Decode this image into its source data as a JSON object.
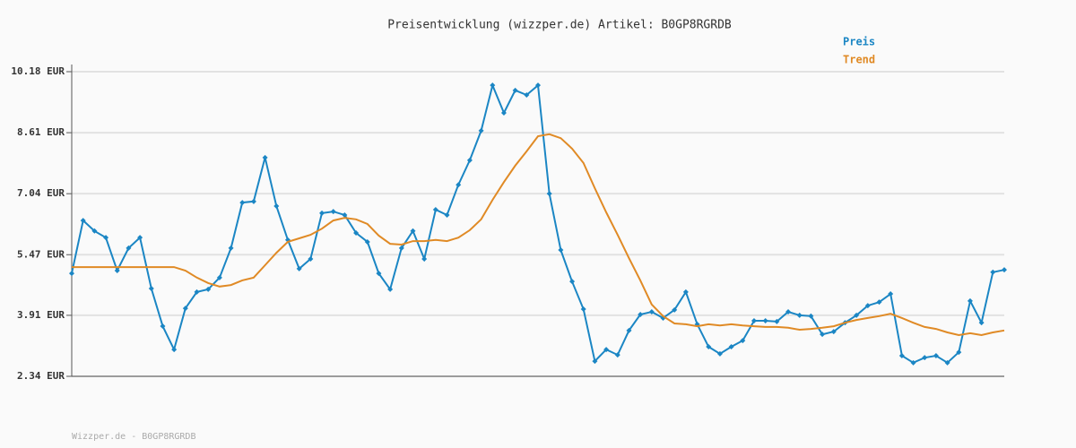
{
  "chart_data": {
    "type": "line",
    "title": "Preisentwicklung (wizzper.de) Artikel: B0GP8RGRDB",
    "footer": "Wizzper.de - B0GP8RGRDB",
    "ylim": [
      2.34,
      10.18
    ],
    "yticks": [
      {
        "value": 2.34,
        "label": "2.34 EUR"
      },
      {
        "value": 3.91,
        "label": "3.91 EUR"
      },
      {
        "value": 5.47,
        "label": "5.47 EUR"
      },
      {
        "value": 7.04,
        "label": "7.04 EUR"
      },
      {
        "value": 8.61,
        "label": "8.61 EUR"
      },
      {
        "value": 10.18,
        "label": "10.18 EUR"
      }
    ],
    "grid": true,
    "legend": "top-right",
    "series": [
      {
        "name": "Preis",
        "color": "#1b86c4",
        "markers": true,
        "values": [
          4.99,
          6.35,
          6.08,
          5.91,
          5.06,
          5.64,
          5.91,
          4.6,
          3.63,
          3.03,
          4.09,
          4.51,
          4.58,
          4.88,
          5.64,
          6.81,
          6.84,
          7.97,
          6.72,
          5.85,
          5.11,
          5.36,
          6.54,
          6.58,
          6.49,
          6.03,
          5.8,
          4.99,
          4.58,
          5.64,
          6.08,
          5.36,
          6.63,
          6.49,
          7.27,
          7.9,
          8.66,
          9.83,
          9.12,
          9.7,
          9.58,
          9.83,
          7.04,
          5.59,
          4.78,
          4.07,
          2.73,
          3.03,
          2.89,
          3.52,
          3.93,
          4.0,
          3.84,
          4.05,
          4.51,
          3.68,
          3.1,
          2.92,
          3.1,
          3.26,
          3.77,
          3.77,
          3.75,
          4.0,
          3.91,
          3.89,
          3.42,
          3.49,
          3.72,
          3.91,
          4.16,
          4.25,
          4.46,
          2.87,
          2.69,
          2.82,
          2.87,
          2.69,
          2.96,
          4.28,
          3.72,
          5.02,
          5.08
        ]
      },
      {
        "name": "Trend",
        "color": "#e08a25",
        "markers": false,
        "values": [
          5.15,
          5.15,
          5.15,
          5.15,
          5.15,
          5.15,
          5.15,
          5.15,
          5.15,
          5.15,
          5.06,
          4.88,
          4.74,
          4.65,
          4.69,
          4.81,
          4.88,
          5.2,
          5.52,
          5.8,
          5.89,
          5.98,
          6.14,
          6.35,
          6.42,
          6.38,
          6.26,
          5.96,
          5.75,
          5.73,
          5.82,
          5.82,
          5.85,
          5.82,
          5.91,
          6.1,
          6.38,
          6.88,
          7.34,
          7.76,
          8.13,
          8.52,
          8.57,
          8.47,
          8.2,
          7.83,
          7.18,
          6.56,
          5.98,
          5.38,
          4.81,
          4.19,
          3.89,
          3.7,
          3.68,
          3.63,
          3.68,
          3.65,
          3.68,
          3.65,
          3.63,
          3.61,
          3.61,
          3.59,
          3.54,
          3.56,
          3.59,
          3.63,
          3.72,
          3.79,
          3.84,
          3.89,
          3.95,
          3.84,
          3.72,
          3.61,
          3.56,
          3.47,
          3.4,
          3.45,
          3.4,
          3.47,
          3.52
        ]
      }
    ]
  }
}
